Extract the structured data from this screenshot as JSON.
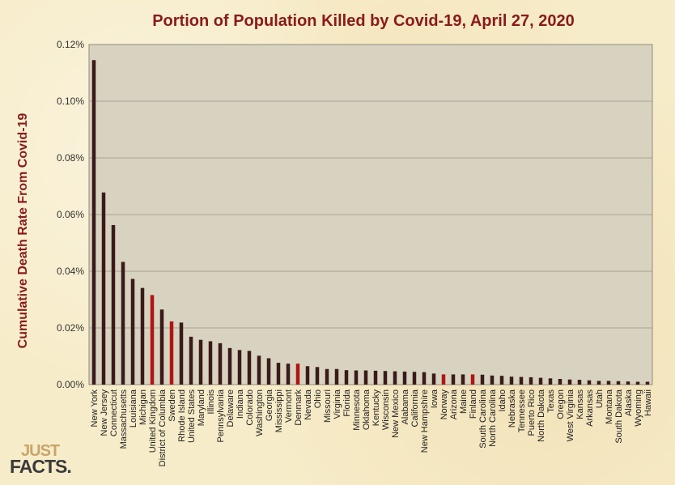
{
  "logo": {
    "line1": "JUST",
    "line2": "FACTS."
  },
  "colors": {
    "plot_bg": "#d8d3c0",
    "bar": "#3b1a1a",
    "bar_highlight": "#b01515",
    "title": "#8b1a1a",
    "grid": "#a6a293"
  },
  "chart_data": {
    "type": "bar",
    "title": "Portion of Population Killed by Covid-19, April 27, 2020",
    "xlabel": "",
    "ylabel": "Cumulative Death Rate From Covid-19",
    "ylim": [
      0,
      0.12
    ],
    "yticks": [
      "0.00%",
      "0.02%",
      "0.04%",
      "0.06%",
      "0.08%",
      "0.10%",
      "0.12%"
    ],
    "grid": true,
    "unit": "percent",
    "categories": [
      "New York",
      "New Jersey",
      "Connecticut",
      "Massachusetts",
      "Louisiana",
      "Michigan",
      "United Kingdom",
      "District of Columbia",
      "Sweden",
      "Rhode Island",
      "United States",
      "Maryland",
      "Illinois",
      "Pennsylvania",
      "Delaware",
      "Indiana",
      "Colorado",
      "Washington",
      "Georgia",
      "Mississippi",
      "Vermont",
      "Denmark",
      "Nevada",
      "Ohio",
      "Missouri",
      "Virginia",
      "Florida",
      "Minnesota",
      "Oklahoma",
      "Kentucky",
      "Wisconsin",
      "New Mexico",
      "Alabama",
      "California",
      "New Hampshire",
      "Iowa",
      "Norway",
      "Arizona",
      "Maine",
      "Finland",
      "South Carolina",
      "North Carolina",
      "Idaho",
      "Nebraska",
      "Tennessee",
      "Puerto Rico",
      "North Dakota",
      "Texas",
      "Oregon",
      "West Virginia",
      "Kansas",
      "Arkansas",
      "Utah",
      "Montana",
      "South Dakota",
      "Alaska",
      "Wyoming",
      "Hawaii"
    ],
    "values": [
      0.1145,
      0.0678,
      0.0563,
      0.0433,
      0.0373,
      0.0341,
      0.0316,
      0.0265,
      0.0223,
      0.0219,
      0.0169,
      0.0158,
      0.0153,
      0.0146,
      0.0129,
      0.0122,
      0.0119,
      0.0102,
      0.0093,
      0.0077,
      0.0074,
      0.0074,
      0.0065,
      0.0062,
      0.0055,
      0.0055,
      0.0051,
      0.005,
      0.005,
      0.0049,
      0.0048,
      0.0047,
      0.0046,
      0.0045,
      0.0044,
      0.0039,
      0.0036,
      0.0036,
      0.0036,
      0.0036,
      0.0035,
      0.0032,
      0.0031,
      0.0028,
      0.0027,
      0.0026,
      0.0024,
      0.0022,
      0.002,
      0.0018,
      0.0017,
      0.0015,
      0.0013,
      0.0013,
      0.0012,
      0.0011,
      0.001,
      0.001
    ],
    "highlighted": [
      "United Kingdom",
      "Sweden",
      "Denmark",
      "Norway",
      "Finland"
    ]
  }
}
